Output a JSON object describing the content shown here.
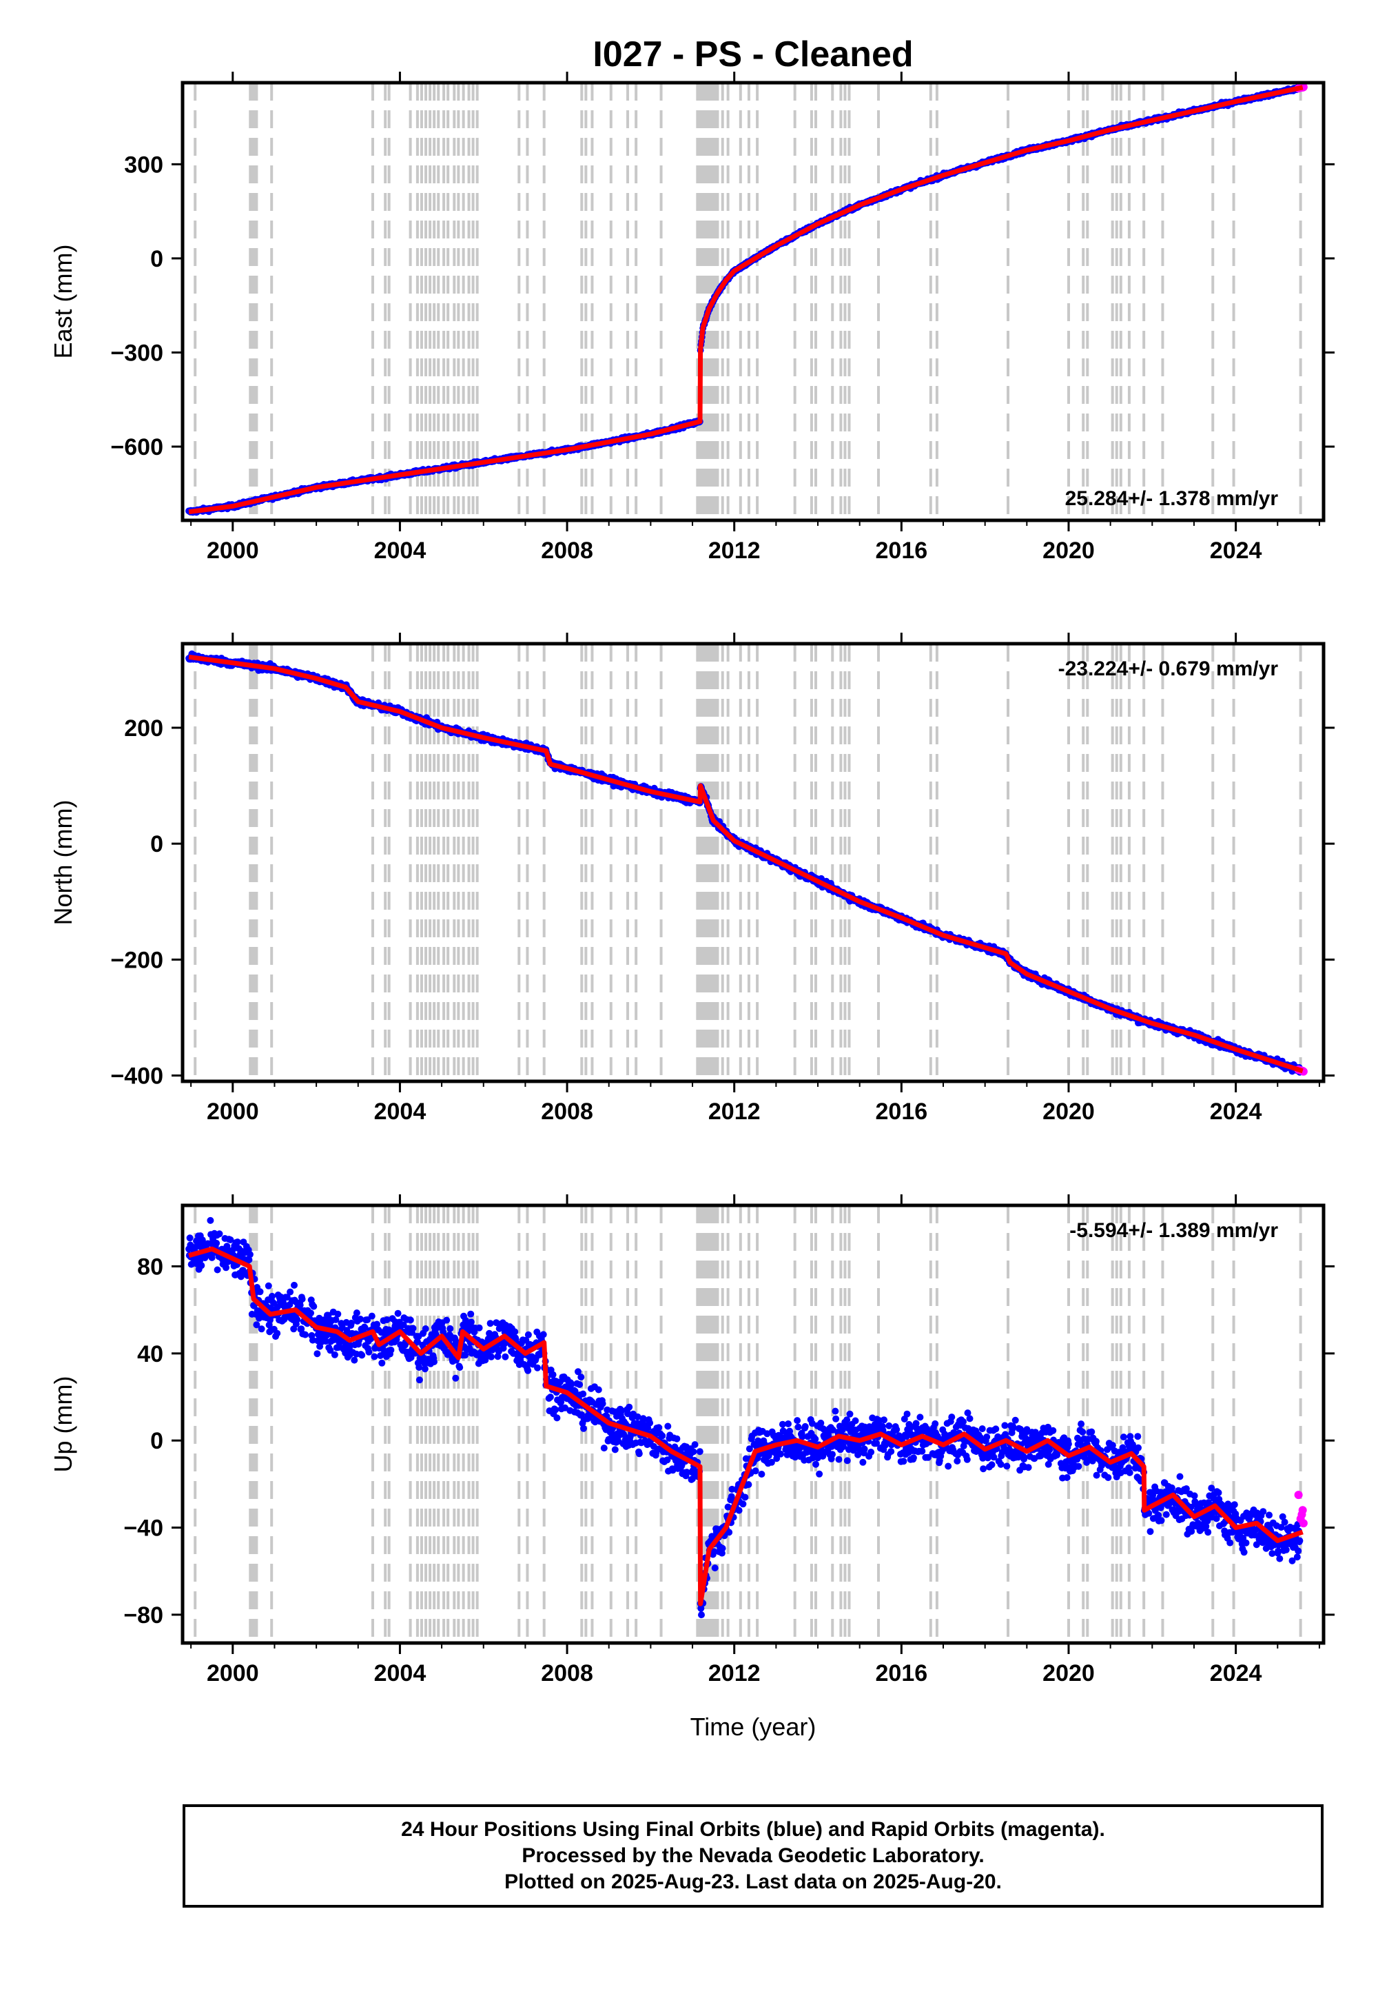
{
  "title": "I027  - PS - Cleaned",
  "colors": {
    "final": "#0000ff",
    "rapid": "#ff00ff",
    "model": "#ff0000",
    "steps": "#c8c8c8"
  },
  "xlabel": "Time (year)",
  "xlim": [
    1998.8,
    2026.1
  ],
  "x_ticks": [
    2000,
    2004,
    2008,
    2012,
    2016,
    2020,
    2024
  ],
  "step_epochs": [
    1999.1,
    2000.42,
    2000.45,
    2000.48,
    2000.51,
    2000.54,
    2000.57,
    2000.93,
    2003.35,
    2003.65,
    2003.74,
    2004.25,
    2004.42,
    2004.52,
    2004.62,
    2004.72,
    2004.82,
    2004.92,
    2005.05,
    2005.15,
    2005.3,
    2005.4,
    2005.52,
    2005.65,
    2005.75,
    2005.85,
    2006.85,
    2007.05,
    2007.45,
    2008.35,
    2008.45,
    2008.6,
    2009.05,
    2009.45,
    2009.65,
    2010.25,
    2011.12,
    2011.18,
    2011.24,
    2011.3,
    2011.36,
    2011.42,
    2011.48,
    2011.54,
    2011.6,
    2011.72,
    2011.85,
    2012.15,
    2012.35,
    2012.55,
    2013.45,
    2013.85,
    2013.95,
    2014.35,
    2014.55,
    2014.65,
    2014.75,
    2015.45,
    2016.7,
    2016.85,
    2018.55,
    2020.0,
    2020.35,
    2020.45,
    2021.05,
    2021.15,
    2021.25,
    2021.45,
    2021.8,
    2022.25,
    2023.45,
    2023.95,
    2025.55
  ],
  "footer": {
    "line1": "24 Hour Positions Using Final Orbits (blue) and Rapid Orbits (magenta).",
    "line2": "Processed by the Nevada Geodetic Laboratory.",
    "line3": "Plotted on 2025-Aug-23. Last data on 2025-Aug-20."
  },
  "chart_data": [
    {
      "type": "scatter",
      "component": "East",
      "ylabel": "East (mm)",
      "ylim": [
        -835,
        560
      ],
      "y_ticks": [
        -600,
        -300,
        0,
        300
      ],
      "rate_label": "25.284+/- 1.378 mm/yr",
      "rate_position": "bottom-right",
      "model_x": [
        1998.95,
        2000.0,
        2002.0,
        2004.0,
        2006.0,
        2008.0,
        2010.0,
        2011.18,
        2011.19,
        2011.25,
        2011.4,
        2011.6,
        2011.8,
        2012.0,
        2012.5,
        2013.0,
        2014.0,
        2015.0,
        2016.0,
        2017.0,
        2018.0,
        2019.0,
        2020.0,
        2021.0,
        2022.0,
        2023.0,
        2024.0,
        2025.6
      ],
      "model_y": [
        -808,
        -790,
        -730,
        -690,
        -650,
        -610,
        -560,
        -520,
        -290,
        -220,
        -160,
        -110,
        -70,
        -40,
        0,
        40,
        110,
        170,
        220,
        265,
        305,
        345,
        375,
        410,
        440,
        470,
        500,
        545
      ],
      "noise_mm": 4,
      "rapid_x": [
        2025.5,
        2025.55,
        2025.6,
        2025.62
      ],
      "rapid_y": [
        542,
        544,
        545,
        546
      ]
    },
    {
      "type": "scatter",
      "component": "North",
      "ylabel": "North (mm)",
      "ylim": [
        -410,
        345
      ],
      "y_ticks": [
        -400,
        -200,
        0,
        200
      ],
      "rate_label": "-23.224+/- 0.679 mm/yr",
      "rate_position": "top-right",
      "model_x": [
        1998.95,
        2000.0,
        2001.0,
        2002.0,
        2002.7,
        2003.0,
        2004.0,
        2005.0,
        2006.0,
        2007.5,
        2007.6,
        2008.0,
        2009.0,
        2010.0,
        2011.18,
        2011.19,
        2011.5,
        2012.0,
        2013.0,
        2014.0,
        2015.0,
        2016.0,
        2017.0,
        2018.5,
        2018.6,
        2019.0,
        2020.0,
        2021.0,
        2022.0,
        2023.0,
        2024.0,
        2025.6
      ],
      "model_y": [
        322,
        312,
        302,
        285,
        270,
        245,
        228,
        200,
        183,
        160,
        137,
        130,
        110,
        90,
        72,
        100,
        40,
        5,
        -30,
        -65,
        -100,
        -128,
        -158,
        -190,
        -205,
        -225,
        -255,
        -285,
        -310,
        -330,
        -355,
        -392
      ],
      "noise_mm": 4,
      "rapid_x": [
        2025.5,
        2025.55,
        2025.6,
        2025.62
      ],
      "rapid_y": [
        -390,
        -391,
        -392,
        -393
      ]
    },
    {
      "type": "scatter",
      "component": "Up",
      "ylabel": "Up (mm)",
      "ylim": [
        -93,
        108
      ],
      "y_ticks": [
        -80,
        -40,
        0,
        40,
        80
      ],
      "rate_label": "-5.594+/- 1.389 mm/yr",
      "rate_position": "top-right",
      "model_x": [
        1998.95,
        1999.5,
        2000.4,
        2000.5,
        2000.9,
        2001.5,
        2002.0,
        2002.5,
        2002.8,
        2003.35,
        2003.5,
        2004.0,
        2004.5,
        2005.0,
        2005.4,
        2005.5,
        2006.0,
        2006.5,
        2007.0,
        2007.45,
        2007.5,
        2008.0,
        2008.5,
        2009.0,
        2009.5,
        2010.0,
        2010.5,
        2011.18,
        2011.19,
        2011.4,
        2011.8,
        2012.0,
        2012.5,
        2013.0,
        2013.5,
        2014.0,
        2014.5,
        2015.0,
        2015.5,
        2016.0,
        2016.5,
        2017.0,
        2017.5,
        2018.0,
        2018.5,
        2019.0,
        2019.5,
        2020.0,
        2020.5,
        2021.0,
        2021.5,
        2021.8,
        2021.81,
        2022.0,
        2022.5,
        2023.0,
        2023.5,
        2024.0,
        2024.5,
        2025.0,
        2025.6
      ],
      "model_y": [
        85,
        88,
        80,
        65,
        58,
        60,
        52,
        50,
        46,
        50,
        44,
        50,
        40,
        48,
        38,
        50,
        42,
        48,
        40,
        45,
        25,
        22,
        15,
        8,
        5,
        2,
        -5,
        -12,
        -75,
        -50,
        -40,
        -30,
        -5,
        -2,
        0,
        -3,
        2,
        0,
        3,
        -2,
        2,
        -2,
        3,
        -4,
        0,
        -5,
        0,
        -7,
        -3,
        -10,
        -6,
        -12,
        -32,
        -30,
        -25,
        -35,
        -30,
        -40,
        -38,
        -46,
        -42
      ],
      "noise_mm": 7,
      "rapid_x": [
        2025.5,
        2025.55,
        2025.58,
        2025.6,
        2025.62
      ],
      "rapid_y": [
        -25,
        -36,
        -34,
        -32,
        -38
      ]
    }
  ]
}
